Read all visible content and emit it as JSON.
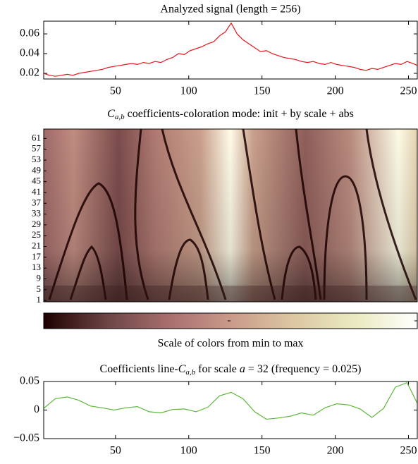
{
  "chart_data": [
    {
      "type": "line",
      "title": "Analyzed signal (length = 256)",
      "color": "#e8141a",
      "x": [
        1,
        5,
        9,
        13,
        17,
        21,
        25,
        29,
        33,
        37,
        41,
        45,
        49,
        53,
        57,
        61,
        65,
        69,
        73,
        77,
        81,
        85,
        89,
        93,
        97,
        101,
        105,
        109,
        113,
        117,
        121,
        125,
        129,
        133,
        137,
        141,
        145,
        149,
        153,
        157,
        161,
        165,
        169,
        173,
        177,
        181,
        185,
        189,
        193,
        197,
        201,
        205,
        209,
        213,
        217,
        221,
        225,
        229,
        233,
        237,
        241,
        245,
        249,
        253,
        256
      ],
      "values": [
        0.02,
        0.018,
        0.017,
        0.018,
        0.019,
        0.018,
        0.02,
        0.021,
        0.022,
        0.023,
        0.024,
        0.026,
        0.027,
        0.028,
        0.029,
        0.03,
        0.029,
        0.031,
        0.03,
        0.032,
        0.031,
        0.034,
        0.036,
        0.04,
        0.039,
        0.043,
        0.045,
        0.047,
        0.05,
        0.052,
        0.058,
        0.062,
        0.071,
        0.06,
        0.054,
        0.05,
        0.046,
        0.042,
        0.043,
        0.04,
        0.038,
        0.036,
        0.035,
        0.034,
        0.032,
        0.031,
        0.032,
        0.03,
        0.029,
        0.031,
        0.029,
        0.028,
        0.027,
        0.026,
        0.024,
        0.023,
        0.025,
        0.024,
        0.026,
        0.028,
        0.03,
        0.029,
        0.032,
        0.03,
        0.028
      ],
      "xlim": [
        1,
        256
      ],
      "xticks": [
        50,
        100,
        150,
        200,
        250
      ],
      "ylim": [
        0.0143,
        0.0729
      ],
      "yticks": [
        0.02,
        0.04,
        0.06
      ]
    },
    {
      "type": "heatmap",
      "title": [
        "C",
        "a,b",
        "coefficients-coloration mode: init + by scale + abs"
      ],
      "ylim": [
        0.5,
        64.5
      ],
      "yticks": [
        1,
        5,
        9,
        13,
        17,
        21,
        25,
        29,
        33,
        37,
        41,
        45,
        49,
        53,
        57,
        61
      ],
      "colormap": [
        "#1e0000",
        "#6b4444",
        "#a86e6e",
        "#c99a8a",
        "#dcc7a2",
        "#eaeac0",
        "#ffffff"
      ],
      "colorbar_label": "Scale of colors from min to max"
    },
    {
      "type": "line",
      "title": [
        "Coefficients line-",
        "C",
        "a,b",
        "for scale",
        "a",
        "= 32 (frequency = 0.025)"
      ],
      "color": "#5cb83a",
      "x": [
        1,
        9,
        17,
        25,
        33,
        41,
        49,
        57,
        65,
        73,
        81,
        89,
        97,
        105,
        113,
        121,
        129,
        137,
        145,
        153,
        161,
        169,
        177,
        185,
        193,
        201,
        209,
        217,
        225,
        233,
        241,
        249,
        256
      ],
      "values": [
        0.003,
        0.02,
        0.023,
        0.017,
        0.007,
        0.004,
        0.0,
        0.004,
        0.006,
        -0.003,
        -0.005,
        0.001,
        0.002,
        -0.003,
        0.005,
        0.025,
        0.031,
        0.02,
        -0.003,
        -0.016,
        -0.014,
        -0.011,
        -0.005,
        -0.009,
        0.004,
        0.011,
        0.009,
        0.002,
        -0.013,
        0.003,
        0.04,
        0.048,
        0.012
      ],
      "xlim": [
        1,
        256
      ],
      "xticks": [
        50,
        100,
        150,
        200,
        250
      ],
      "ylim": [
        -0.05,
        0.05
      ],
      "yticks": [
        {
          "value": -0.05,
          "label": "−0.05"
        },
        0,
        0.05
      ]
    }
  ]
}
